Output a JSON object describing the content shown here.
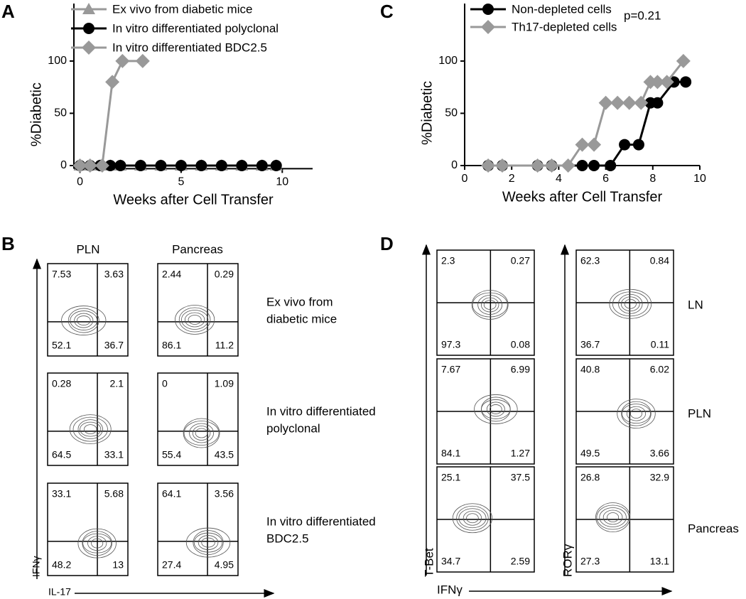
{
  "chart_data": [
    {
      "type": "line",
      "label": "A",
      "xlabel": "Weeks after Cell Transfer",
      "ylabel": "%Diabetic",
      "xlim": [
        -0.3,
        11.5
      ],
      "ylim": [
        -3,
        155
      ],
      "xticks": [
        0,
        5,
        10
      ],
      "yticks": [
        0,
        50,
        100
      ],
      "series": [
        {
          "name": "Ex vivo from diabetic mice",
          "color": "#999999",
          "marker": "triangle",
          "x": [
            0,
            0.5,
            1,
            1.5,
            2,
            3,
            4,
            5,
            6,
            7,
            8,
            9,
            9.7
          ],
          "values": [
            0,
            0,
            0,
            0,
            0,
            0,
            0,
            0,
            0,
            0,
            0,
            0,
            0
          ]
        },
        {
          "name": "In vitro differentiated polyclonal",
          "color": "#000000",
          "marker": "circle",
          "x": [
            0,
            0.5,
            1,
            1.5,
            2,
            3,
            4,
            5,
            6,
            7,
            8,
            9,
            9.7
          ],
          "values": [
            0,
            0,
            0,
            0,
            0,
            0,
            0,
            0,
            0,
            0,
            0,
            0,
            0
          ]
        },
        {
          "name": "In vitro differentiated BDC2.5",
          "color": "#999999",
          "marker": "diamond",
          "x": [
            0,
            0.5,
            1.1,
            1.6,
            2.1,
            3.1
          ],
          "values": [
            0,
            0,
            0,
            80,
            100,
            100
          ]
        }
      ]
    },
    {
      "type": "line",
      "label": "C",
      "xlabel": "Weeks after Cell Transfer",
      "ylabel": "%Diabetic",
      "annotation": "p=0.21",
      "xlim": [
        0,
        10
      ],
      "ylim": [
        0,
        155
      ],
      "xticks": [
        0,
        2,
        4,
        6,
        8,
        10
      ],
      "yticks": [
        0,
        50,
        100
      ],
      "series": [
        {
          "name": "Non-depleted cells",
          "color": "#000000",
          "marker": "circle",
          "x": [
            1,
            1.6,
            3.1,
            3.7,
            5,
            5.5,
            6.2,
            6.8,
            7.4,
            7.9,
            8.2,
            8.9,
            9.4
          ],
          "values": [
            0,
            0,
            0,
            0,
            0,
            0,
            0,
            20,
            20,
            60,
            60,
            80,
            80
          ]
        },
        {
          "name": "Th17-depleted cells",
          "color": "#999999",
          "marker": "diamond",
          "x": [
            1,
            1.6,
            3.1,
            3.7,
            4.4,
            5,
            5.5,
            6,
            6.5,
            7,
            7.5,
            7.9,
            8.2,
            8.6,
            9.3
          ],
          "values": [
            0,
            0,
            0,
            0,
            0,
            20,
            20,
            60,
            60,
            60,
            60,
            80,
            80,
            80,
            100
          ]
        }
      ]
    }
  ],
  "panels": {
    "B": {
      "label": "B",
      "columns": [
        "PLN",
        "Pancreas"
      ],
      "y_label": "IFNγ",
      "x_label": "IL-17",
      "rows": [
        {
          "label": [
            "Ex vivo from",
            "diabetic mice"
          ],
          "plots": [
            [
              "7.53",
              "3.63",
              "52.1",
              "36.7"
            ],
            [
              "2.44",
              "0.29",
              "86.1",
              "11.2"
            ]
          ]
        },
        {
          "label": [
            "In vitro differentiated",
            "polyclonal"
          ],
          "plots": [
            [
              "0.28",
              "2.1",
              "64.5",
              "33.1"
            ],
            [
              "0",
              "1.09",
              "55.4",
              "43.5"
            ]
          ]
        },
        {
          "label": [
            "In vitro differentiated",
            "BDC2.5"
          ],
          "plots": [
            [
              "33.1",
              "5.68",
              "48.2",
              "13"
            ],
            [
              "64.1",
              "3.56",
              "27.4",
              "4.95"
            ]
          ]
        }
      ]
    },
    "D": {
      "label": "D",
      "y_labels": [
        "T-Bet",
        "RORγ"
      ],
      "x_label": "IFNγ",
      "rows": [
        {
          "label": [
            "LN"
          ],
          "plots": [
            [
              "2.3",
              "0.27",
              "97.3",
              "0.08"
            ],
            [
              "62.3",
              "0.84",
              "36.7",
              "0.11"
            ]
          ]
        },
        {
          "label": [
            "PLN"
          ],
          "plots": [
            [
              "7.67",
              "6.99",
              "84.1",
              "1.27"
            ],
            [
              "40.8",
              "6.02",
              "49.5",
              "3.66"
            ]
          ]
        },
        {
          "label": [
            "Pancreas"
          ],
          "plots": [
            [
              "25.1",
              "37.5",
              "34.7",
              "2.59"
            ],
            [
              "26.8",
              "32.9",
              "27.3",
              "13.1"
            ]
          ]
        }
      ]
    }
  }
}
